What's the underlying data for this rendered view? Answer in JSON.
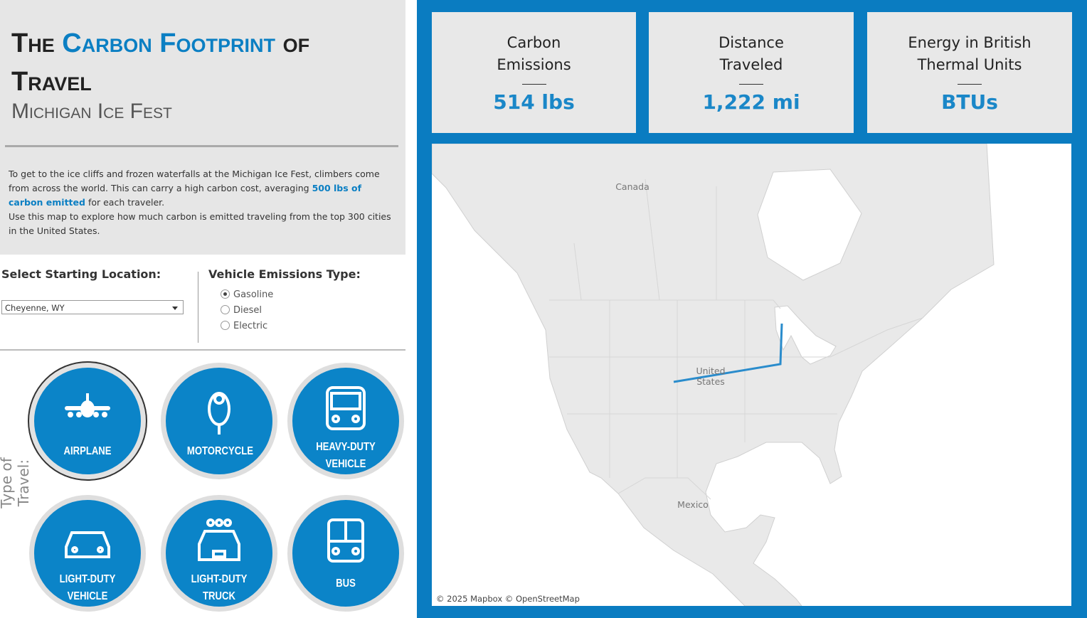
{
  "header": {
    "title": [
      "The",
      "Carbon Footprint",
      "of",
      "Travel"
    ],
    "subtitle": "Michigan Ice Fest"
  },
  "description": {
    "paragraph_1": [
      "To get to the ice cliffs and frozen waterfalls at the Michigan Ice Fest, climbers come from across the world. This can carry a high carbon cost, averaging",
      "500 lbs of carbon emitted",
      "for each traveler."
    ],
    "paragraph_2": "Use this map to explore how much carbon is emitted traveling from the top 300 cities in the United States."
  },
  "filters": {
    "location": {
      "label": "Select Starting Location:",
      "selected": "Cheyenne, WY"
    },
    "emissions": {
      "label": "Vehicle Emissions Type:",
      "options": [
        "Gasoline",
        "Diesel",
        "Electric"
      ],
      "selected_index": 0
    }
  },
  "travel": {
    "label": "Type of Travel:",
    "options": [
      "AIRPLANE",
      "MOTORCYCLE",
      "HEAVY-DUTY VEHICLE",
      "LIGHT-DUTY VEHICLE",
      "LIGHT-DUTY TRUCK",
      "BUS"
    ],
    "selected_index": 0
  },
  "kpis": [
    {
      "label": "Carbon Emissions",
      "value": "514 lbs"
    },
    {
      "label": "Distance Traveled",
      "value": "1,222 mi"
    },
    {
      "label": "Energy in British Thermal Units",
      "value": "BTUs"
    }
  ],
  "map": {
    "labels": [
      "Canada",
      "United States",
      "Mexico"
    ],
    "attribution": "© 2025 Mapbox © OpenStreetMap"
  }
}
